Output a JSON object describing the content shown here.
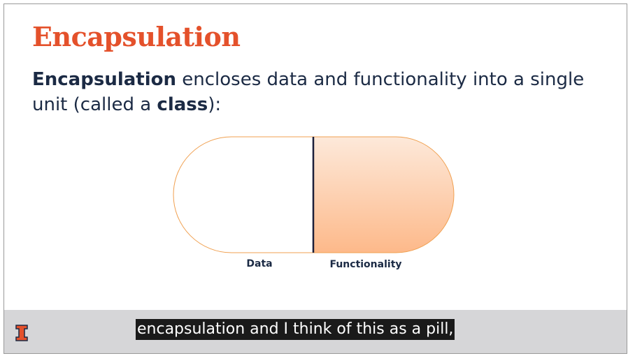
{
  "slide": {
    "title": "Encapsulation",
    "body_term": "Encapsulation",
    "body_text_1": " encloses data and functionality into a single unit (called a ",
    "body_term_2": "class",
    "body_text_2": "):"
  },
  "diagram": {
    "left_label": "Data",
    "right_label": "Functionality",
    "colors": {
      "outline": "#f0a050",
      "divider": "#1b1f3a",
      "fill_light": "#fde9da",
      "fill_dark": "#fdb98a"
    }
  },
  "caption": {
    "text": "encapsulation and I think of this as a pill,"
  },
  "logo": {
    "icon": "university-block-i-icon",
    "color": "#e4512b"
  }
}
